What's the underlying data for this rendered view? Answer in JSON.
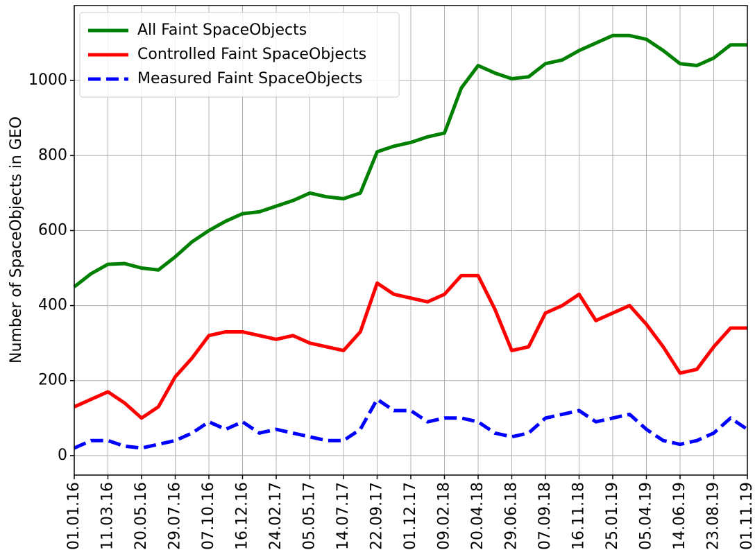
{
  "chart_data": {
    "type": "line",
    "y_label": "Number of SpaceObjects in GEO",
    "categories": [
      "01.01.16",
      null,
      "11.03.16",
      null,
      "20.05.16",
      null,
      "29.07.16",
      null,
      "07.10.16",
      null,
      "16.12.16",
      null,
      "24.02.17",
      null,
      "05.05.17",
      null,
      "14.07.17",
      null,
      "22.09.17",
      null,
      "01.12.17",
      null,
      "09.02.18",
      null,
      "20.04.18",
      null,
      "29.06.18",
      null,
      "07.09.18",
      null,
      "16.11.18",
      null,
      "25.01.19",
      null,
      "05.04.19",
      null,
      "14.06.19",
      null,
      "23.08.19",
      null,
      "01.11.19"
    ],
    "series": [
      {
        "name": "All Faint SpaceObjects",
        "color": "#008000",
        "linestyle": "solid",
        "values": [
          450,
          485,
          510,
          512,
          500,
          495,
          530,
          570,
          600,
          625,
          645,
          650,
          665,
          680,
          700,
          690,
          685,
          700,
          810,
          825,
          835,
          850,
          860,
          980,
          1040,
          1020,
          1005,
          1010,
          1045,
          1055,
          1080,
          1100,
          1120,
          1120,
          1110,
          1080,
          1045,
          1040,
          1060,
          1095,
          1095
        ]
      },
      {
        "name": "Controlled Faint SpaceObjects",
        "color": "#ff0000",
        "linestyle": "solid",
        "values": [
          130,
          150,
          170,
          140,
          100,
          130,
          210,
          260,
          320,
          330,
          330,
          320,
          310,
          320,
          300,
          290,
          280,
          330,
          460,
          430,
          420,
          410,
          430,
          480,
          480,
          390,
          280,
          290,
          380,
          400,
          430,
          360,
          380,
          400,
          350,
          290,
          220,
          230,
          290,
          340,
          340
        ]
      },
      {
        "name": "Measured Faint SpaceObjects",
        "color": "#0000ff",
        "linestyle": "dashed",
        "values": [
          20,
          40,
          40,
          25,
          20,
          30,
          40,
          60,
          90,
          70,
          90,
          60,
          70,
          60,
          50,
          40,
          40,
          70,
          150,
          120,
          120,
          90,
          100,
          100,
          90,
          60,
          50,
          60,
          100,
          110,
          120,
          90,
          100,
          110,
          70,
          40,
          30,
          40,
          60,
          100,
          70
        ]
      }
    ],
    "ylim": [
      -52,
      1200
    ],
    "yticks": [
      0,
      200,
      400,
      600,
      800,
      1000
    ],
    "grid": true,
    "legend": "upper left"
  }
}
